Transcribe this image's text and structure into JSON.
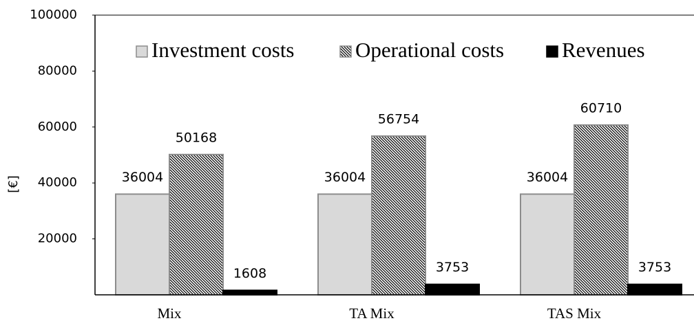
{
  "chart_data": {
    "type": "bar",
    "ylabel": "[€]",
    "categories": [
      "Mix",
      "TA Mix",
      "TAS Mix"
    ],
    "series": [
      {
        "name": "Investment costs",
        "color": "#d9d9d9",
        "values": [
          36004,
          36004,
          36004
        ]
      },
      {
        "name": "Operational costs",
        "color": "hatch",
        "values": [
          50168,
          56754,
          60710
        ]
      },
      {
        "name": "Revenues",
        "color": "#000000",
        "values": [
          1608,
          3753,
          3753
        ]
      }
    ],
    "ylim": [
      0,
      100000
    ],
    "yticks": [
      20000,
      40000,
      60000,
      80000,
      100000
    ],
    "legend": "top"
  }
}
